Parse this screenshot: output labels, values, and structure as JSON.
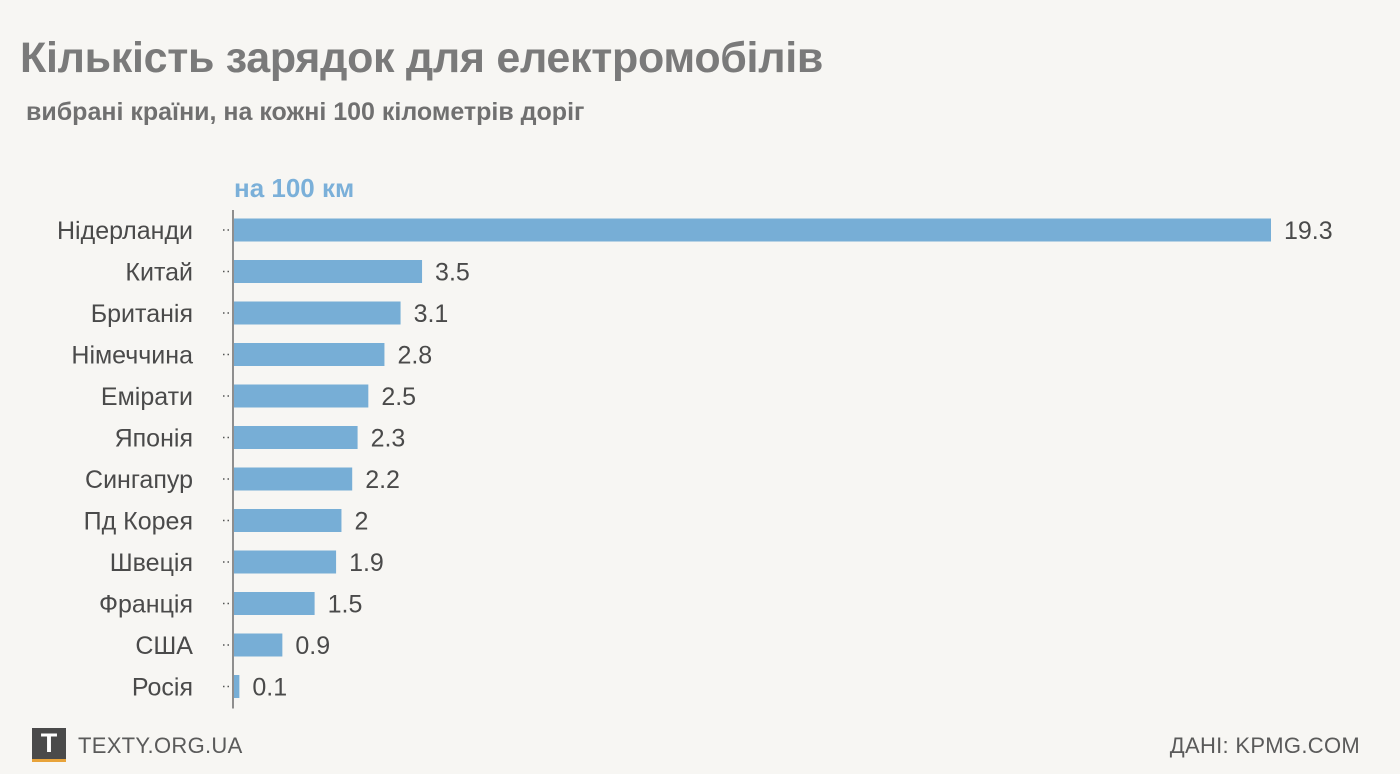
{
  "chart_data": {
    "type": "bar",
    "orientation": "horizontal",
    "title": "Кількість зарядок для електромобілів",
    "subtitle": "вибрані країни, на кожні 100 кілометрів доріг",
    "series_name": "на 100 км",
    "categories": [
      "Нідерланди",
      "Китай",
      "Британія",
      "Німеччина",
      "Емірати",
      "Японія",
      "Сингапур",
      "Пд Корея",
      "Швеція",
      "Франція",
      "США",
      "Росія"
    ],
    "values": [
      19.3,
      3.5,
      3.1,
      2.8,
      2.5,
      2.3,
      2.2,
      2,
      1.9,
      1.5,
      0.9,
      0.1
    ],
    "value_labels": [
      "19.3",
      "3.5",
      "3.1",
      "2.8",
      "2.5",
      "2.3",
      "2.2",
      "2",
      "1.9",
      "1.5",
      "0.9",
      "0.1"
    ],
    "xlim": [
      0,
      19.3
    ],
    "bar_color": "#77aed6",
    "grid": false
  },
  "footer": {
    "logo_letter": "T",
    "site": "TEXTY.ORG.UA",
    "source": "ДАНІ: KPMG.COM"
  }
}
